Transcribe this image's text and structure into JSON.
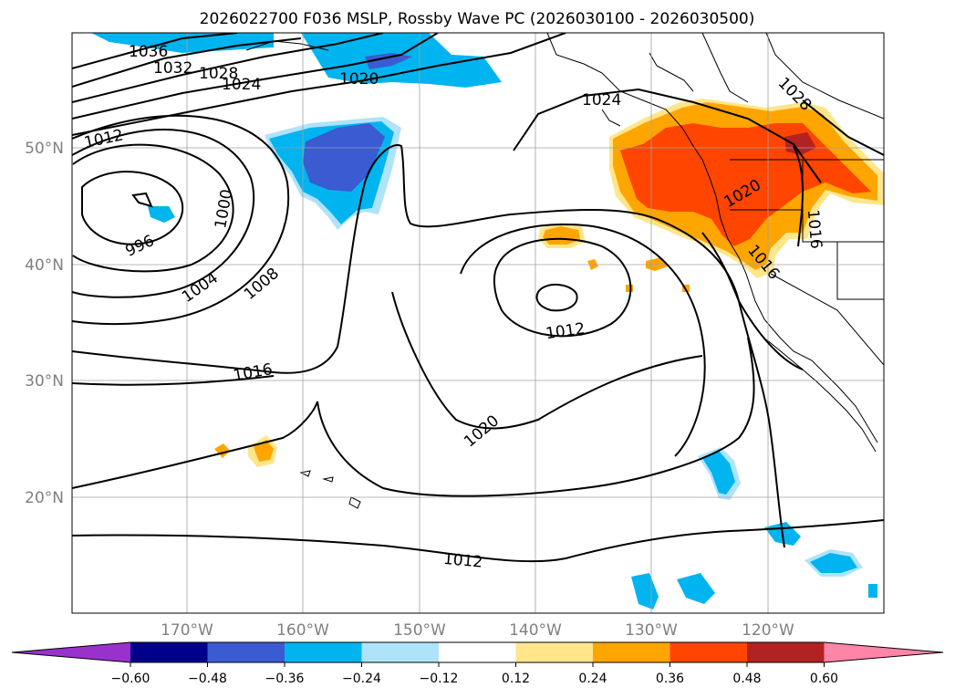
{
  "title": "2026022700 F036 MSLP, Rossby Wave PC (2026030100 - 2026030500)",
  "lat_labels": [
    "50°N",
    "40°N",
    "30°N",
    "20°N"
  ],
  "lon_labels": [
    "170°W",
    "160°W",
    "150°W",
    "140°W",
    "130°W",
    "120°W"
  ],
  "colorbar": {
    "ticks": [
      "−0.60",
      "−0.48",
      "−0.36",
      "−0.24",
      "−0.12",
      "0.12",
      "0.24",
      "0.36",
      "0.48",
      "0.60"
    ],
    "colors": [
      "#9932cc",
      "#00008b",
      "#3a5bd1",
      "#00b4f0",
      "#aee3fa",
      "#ffffff",
      "#ffe68a",
      "#ffa500",
      "#ff4500",
      "#b22222",
      "#ff85a8"
    ]
  },
  "contour_labels": [
    "1036",
    "1032",
    "1028",
    "1024",
    "1020",
    "1024",
    "1028",
    "1012",
    "1000",
    "996",
    "1004",
    "1008",
    "1020",
    "1016",
    "1016",
    "1012",
    "1020",
    "1012"
  ]
}
